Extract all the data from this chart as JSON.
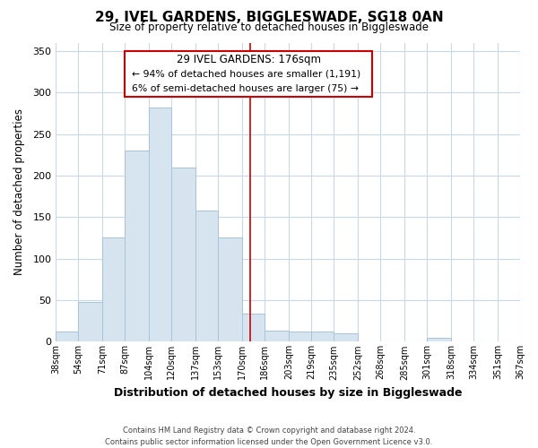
{
  "title": "29, IVEL GARDENS, BIGGLESWADE, SG18 0AN",
  "subtitle": "Size of property relative to detached houses in Biggleswade",
  "xlabel": "Distribution of detached houses by size in Biggleswade",
  "ylabel": "Number of detached properties",
  "footer_line1": "Contains HM Land Registry data © Crown copyright and database right 2024.",
  "footer_line2": "Contains public sector information licensed under the Open Government Licence v3.0.",
  "bar_edges": [
    38,
    54,
    71,
    87,
    104,
    120,
    137,
    153,
    170,
    186,
    203,
    219,
    235,
    252,
    268,
    285,
    301,
    318,
    334,
    351,
    367
  ],
  "bar_heights": [
    12,
    48,
    126,
    230,
    282,
    210,
    158,
    126,
    34,
    13,
    12,
    12,
    10,
    0,
    0,
    0,
    5,
    0,
    0,
    0
  ],
  "bar_color": "#d6e4f0",
  "bar_edge_color": "#a8c4d8",
  "vline_x": 176,
  "vline_color": "#cc0000",
  "ylim": [
    0,
    360
  ],
  "yticks": [
    0,
    50,
    100,
    150,
    200,
    250,
    300,
    350
  ],
  "annotation_title": "29 IVEL GARDENS: 176sqm",
  "annotation_line1": "← 94% of detached houses are smaller (1,191)",
  "annotation_line2": "6% of semi-detached houses are larger (75) →",
  "background_color": "#ffffff",
  "grid_color": "#c8d8e8",
  "x_tick_labels": [
    "38sqm",
    "54sqm",
    "71sqm",
    "87sqm",
    "104sqm",
    "120sqm",
    "137sqm",
    "153sqm",
    "170sqm",
    "186sqm",
    "203sqm",
    "219sqm",
    "235sqm",
    "252sqm",
    "268sqm",
    "285sqm",
    "301sqm",
    "318sqm",
    "334sqm",
    "351sqm",
    "367sqm"
  ]
}
